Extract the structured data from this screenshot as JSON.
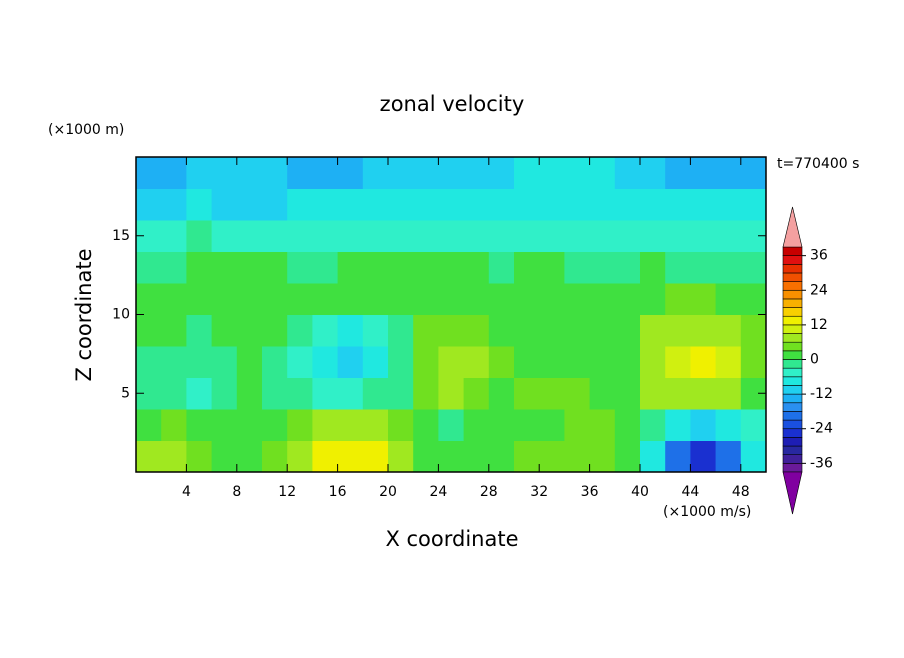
{
  "chart_data": {
    "type": "contour",
    "title": "zonal velocity",
    "y_unit": "(×1000 m)",
    "time_label": "t=770400 s",
    "x_label": "X coordinate",
    "y_label": "Z coordinate",
    "color_unit": "(×1000 m/s)",
    "xlim": [
      0,
      50
    ],
    "ylim": [
      0,
      20
    ],
    "xticks": [
      4,
      8,
      12,
      16,
      20,
      24,
      28,
      32,
      36,
      40,
      44,
      48
    ],
    "yticks": [
      5,
      10,
      15
    ],
    "x": [
      1,
      3,
      5,
      7,
      9,
      11,
      13,
      15,
      17,
      19,
      21,
      23,
      25,
      27,
      29,
      31,
      33,
      35,
      37,
      39,
      41,
      43,
      45,
      47,
      49
    ],
    "y": [
      1,
      3,
      5,
      7,
      9,
      11,
      13,
      15,
      17,
      19
    ],
    "z": [
      [
        6,
        6,
        3,
        2,
        2,
        3,
        8,
        12,
        14,
        12,
        6,
        2,
        1,
        2,
        2,
        3,
        3,
        4,
        5,
        2,
        -8,
        -20,
        -26,
        -20,
        -8
      ],
      [
        2,
        3,
        2,
        2,
        1,
        2,
        4,
        6,
        7,
        6,
        3,
        1,
        -1,
        1,
        2,
        2,
        1,
        3,
        4,
        1,
        -2,
        -8,
        -10,
        -8,
        -4
      ],
      [
        -1,
        -3,
        -4,
        -3,
        0,
        -1,
        -2,
        -4,
        -4,
        -3,
        -1,
        4,
        6,
        4,
        2,
        3,
        5,
        4,
        2,
        0,
        6,
        8,
        8,
        6,
        2
      ],
      [
        -1,
        -2,
        -2,
        -1,
        0,
        -1,
        -4,
        -8,
        -10,
        -7,
        -3,
        4,
        7,
        6,
        3,
        1,
        1,
        2,
        2,
        2,
        8,
        10,
        12,
        9,
        3
      ],
      [
        1,
        0,
        -1,
        0,
        1,
        0,
        -3,
        -6,
        -7,
        -5,
        -2,
        4,
        5,
        3,
        1,
        1,
        2,
        1,
        2,
        1,
        6,
        8,
        8,
        6,
        3
      ],
      [
        2,
        2,
        1,
        2,
        1,
        2,
        2,
        1,
        1,
        2,
        1,
        2,
        2,
        2,
        1,
        2,
        1,
        2,
        2,
        1,
        2,
        3,
        3,
        2,
        2
      ],
      [
        -1,
        -1,
        0,
        0,
        1,
        0,
        -2,
        -1,
        1,
        1,
        2,
        1,
        1,
        0,
        -1,
        0,
        0,
        -1,
        -2,
        -1,
        0,
        -1,
        -1,
        -2,
        -1
      ],
      [
        -4,
        -4,
        -3,
        -4,
        -5,
        -4,
        -4,
        -4,
        -5,
        -5,
        -4,
        -4,
        -4,
        -4,
        -4,
        -4,
        -5,
        -4,
        -5,
        -5,
        -5,
        -4,
        -4,
        -5,
        -5
      ],
      [
        -10,
        -10,
        -9,
        -10,
        -12,
        -12,
        -9,
        -8,
        -8,
        -8,
        -9,
        -8,
        -7,
        -7,
        -8,
        -8,
        -7,
        -8,
        -9,
        -9,
        -8,
        -7,
        -7,
        -7,
        -7
      ],
      [
        -14,
        -13,
        -12,
        -12,
        -11,
        -12,
        -15,
        -14,
        -13,
        -12,
        -11,
        -10,
        -11,
        -11,
        -10,
        -9,
        -8,
        -7,
        -7,
        -10,
        -12,
        -13,
        -13,
        -14,
        -13
      ]
    ],
    "levels": [
      -39,
      -36,
      -33,
      -30,
      -27,
      -24,
      -21,
      -18,
      -15,
      -12,
      -9,
      -6,
      -3,
      0,
      3,
      6,
      9,
      12,
      15,
      18,
      21,
      24,
      27,
      30,
      33,
      36,
      39
    ],
    "colors": [
      "#6a1a9a",
      "#40209a",
      "#2828a0",
      "#1e1eb4",
      "#1a30d0",
      "#1a50e0",
      "#1e70e8",
      "#2a90f0",
      "#1eb0f4",
      "#20d0f0",
      "#20e8e0",
      "#30f0c8",
      "#30e890",
      "#40e040",
      "#70e020",
      "#a0e820",
      "#d0f010",
      "#f0f000",
      "#f8d000",
      "#f8b000",
      "#f89000",
      "#f87000",
      "#f05000",
      "#e83000",
      "#e01010",
      "#c80000"
    ],
    "under_color": "#8000a0",
    "over_color": "#f4a0a0",
    "cticks": [
      -36,
      -24,
      -12,
      0,
      12,
      24,
      36
    ]
  }
}
